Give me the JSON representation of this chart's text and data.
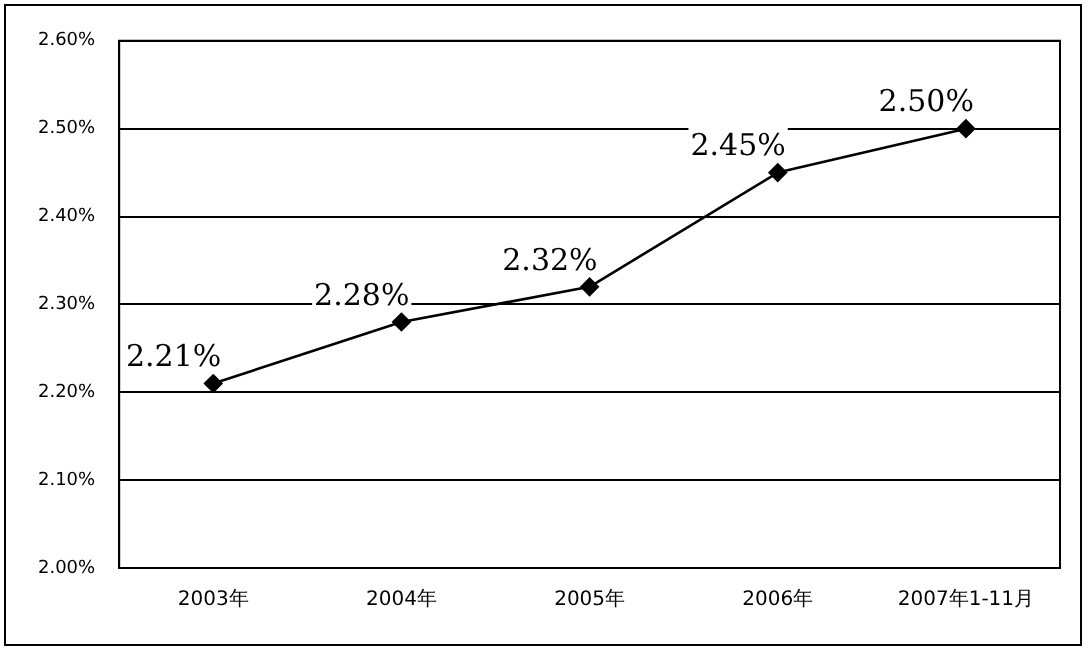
{
  "chart_data": {
    "type": "line",
    "categories": [
      "2003年",
      "2004年",
      "2005年",
      "2006年",
      "2007年1-11月"
    ],
    "series": [
      {
        "color": "#000000",
        "values": [
          2.21,
          2.28,
          2.32,
          2.45,
          2.5
        ],
        "value_labels": [
          "2.21%",
          "2.28%",
          "2.32%",
          "2.45%",
          "2.50%"
        ]
      }
    ],
    "ylim": [
      2.0,
      2.6
    ],
    "yticks": [
      {
        "value": 2.0,
        "label": "2.00%"
      },
      {
        "value": 2.1,
        "label": "2.10%"
      },
      {
        "value": 2.2,
        "label": "2.20%"
      },
      {
        "value": 2.3,
        "label": "2.30%"
      },
      {
        "value": 2.4,
        "label": "2.40%"
      },
      {
        "value": 2.5,
        "label": "2.50%"
      },
      {
        "value": 2.6,
        "label": "2.60%"
      }
    ],
    "grid": "y",
    "marker": "diamond",
    "line_style": "solid",
    "legend": false
  }
}
